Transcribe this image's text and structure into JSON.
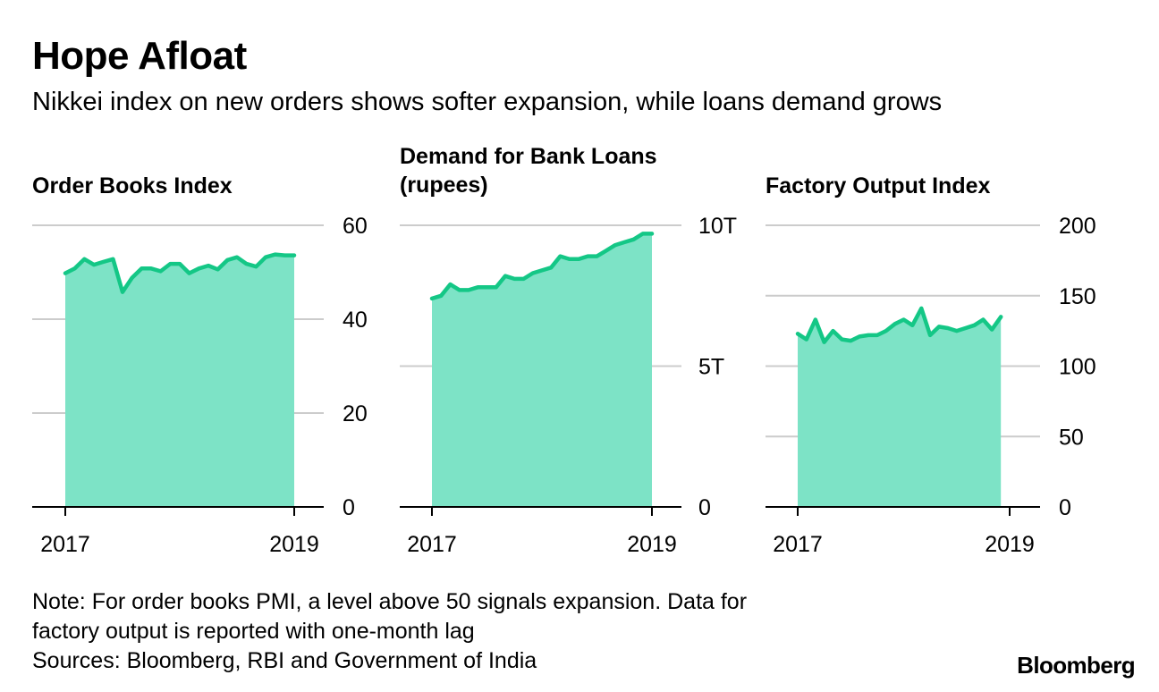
{
  "header": {
    "title": "Hope Afloat",
    "subtitle": "Nikkei index on new orders shows softer expansion, while loans demand grows"
  },
  "colors": {
    "line": "#14c786",
    "area": "#7de3c6",
    "grid": "#cccccc",
    "axis": "#000000"
  },
  "chart_data": [
    {
      "type": "area",
      "title": [
        "Order Books Index"
      ],
      "ylim": [
        0,
        60
      ],
      "yticks": [
        0,
        20,
        40,
        60
      ],
      "ytick_labels": [
        "0",
        "20",
        "40",
        "60"
      ],
      "xlim": [
        2017,
        2019
      ],
      "xticks": [
        2017,
        2019
      ],
      "xtick_labels": [
        "2017",
        "2019"
      ],
      "grid": true,
      "x": [
        2017.0,
        2017.083,
        2017.167,
        2017.25,
        2017.333,
        2017.417,
        2017.5,
        2017.583,
        2017.667,
        2017.75,
        2017.833,
        2017.917,
        2018.0,
        2018.083,
        2018.167,
        2018.25,
        2018.333,
        2018.417,
        2018.5,
        2018.583,
        2018.667,
        2018.75,
        2018.833,
        2018.917,
        2019.0
      ],
      "values": [
        49.8,
        50.8,
        52.8,
        51.6,
        52.2,
        52.8,
        45.8,
        48.8,
        50.8,
        50.8,
        50.2,
        51.8,
        51.8,
        49.8,
        50.8,
        51.4,
        50.6,
        52.6,
        53.2,
        51.8,
        51.2,
        53.2,
        53.8,
        53.6,
        53.6
      ]
    },
    {
      "type": "area",
      "title": [
        "Demand for Bank Loans",
        "(rupees)"
      ],
      "ylim": [
        0,
        10
      ],
      "yticks": [
        0,
        5,
        10
      ],
      "ytick_labels": [
        "0",
        "5T",
        "10T"
      ],
      "xlim": [
        2017,
        2019
      ],
      "xticks": [
        2017,
        2019
      ],
      "xtick_labels": [
        "2017",
        "2019"
      ],
      "grid": true,
      "x": [
        2017.0,
        2017.083,
        2017.167,
        2017.25,
        2017.333,
        2017.417,
        2017.5,
        2017.583,
        2017.667,
        2017.75,
        2017.833,
        2017.917,
        2018.0,
        2018.083,
        2018.167,
        2018.25,
        2018.333,
        2018.417,
        2018.5,
        2018.583,
        2018.667,
        2018.75,
        2018.833,
        2018.917,
        2019.0
      ],
      "values": [
        7.4,
        7.5,
        7.9,
        7.7,
        7.7,
        7.8,
        7.8,
        7.8,
        8.2,
        8.1,
        8.1,
        8.3,
        8.4,
        8.5,
        8.9,
        8.8,
        8.8,
        8.9,
        8.9,
        9.1,
        9.3,
        9.4,
        9.5,
        9.7,
        9.7
      ]
    },
    {
      "type": "area",
      "title": [
        "Factory Output Index"
      ],
      "ylim": [
        0,
        200
      ],
      "yticks": [
        0,
        50,
        100,
        150,
        200
      ],
      "ytick_labels": [
        "0",
        "50",
        "100",
        "150",
        "200"
      ],
      "xlim": [
        2017,
        2019
      ],
      "xticks": [
        2017,
        2019
      ],
      "xtick_labels": [
        "2017",
        "2019"
      ],
      "grid": true,
      "x": [
        2017.0,
        2017.083,
        2017.167,
        2017.25,
        2017.333,
        2017.417,
        2017.5,
        2017.583,
        2017.667,
        2017.75,
        2017.833,
        2017.917,
        2018.0,
        2018.083,
        2018.167,
        2018.25,
        2018.333,
        2018.417,
        2018.5,
        2018.583,
        2018.667,
        2018.75,
        2018.833,
        2018.917
      ],
      "values": [
        123,
        119,
        133,
        117,
        125,
        119,
        118,
        121,
        122,
        122,
        125,
        130,
        133,
        129,
        141,
        122,
        128,
        127,
        125,
        127,
        129,
        133,
        126,
        135
      ]
    }
  ],
  "footer": {
    "note_lines": [
      "Note: For order books PMI, a level above 50 signals expansion. Data for",
      "factory output is reported with one-month lag",
      "Sources: Bloomberg, RBI and Government of India"
    ],
    "logo": "Bloomberg"
  }
}
